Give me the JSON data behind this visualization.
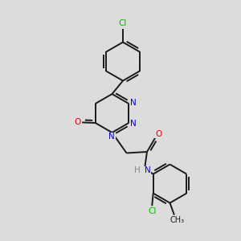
{
  "bg_color": "#dcdcdc",
  "bond_color": "#1a1a1a",
  "bond_width": 1.4,
  "atom_colors": {
    "N": "#0000ee",
    "O": "#ee0000",
    "Cl": "#00bb00",
    "H": "#888888"
  },
  "font_size": 7.5,
  "fig_size": [
    3.0,
    3.0
  ],
  "dpi": 100
}
